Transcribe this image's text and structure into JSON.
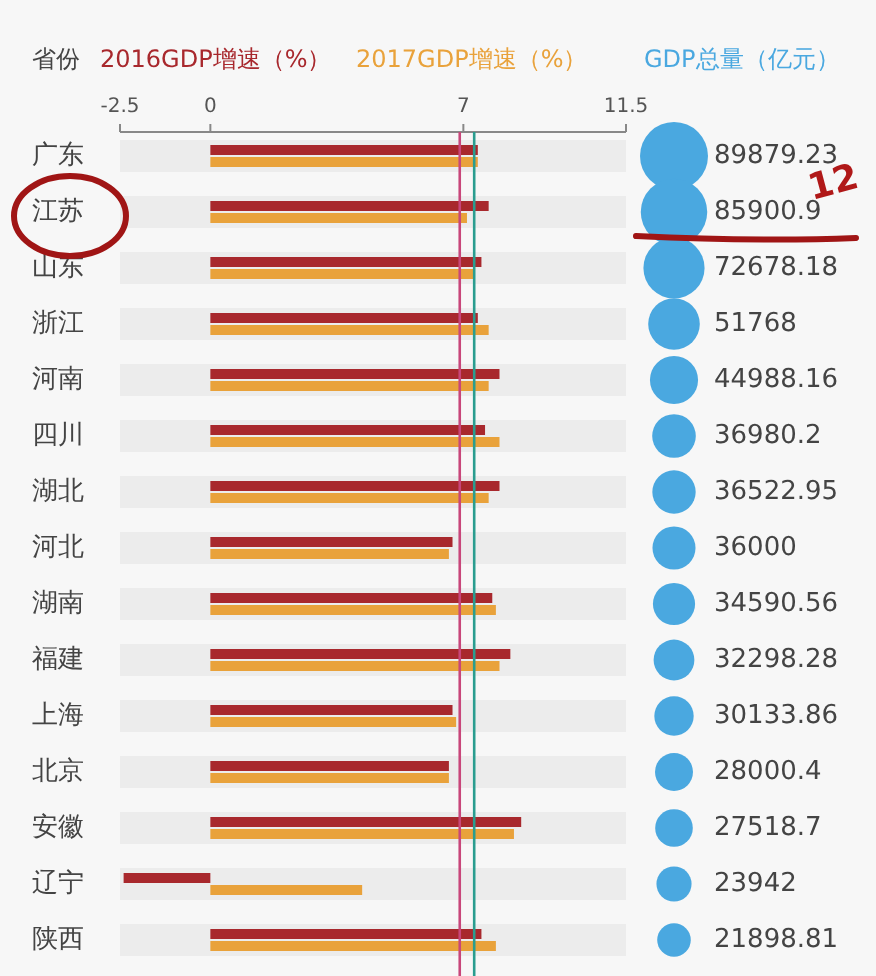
{
  "chart_data": [
    {
      "type": "bar",
      "orientation": "horizontal",
      "ylabel": "省份",
      "categories": [
        "广东",
        "江苏",
        "山东",
        "浙江",
        "河南",
        "四川",
        "湖北",
        "河北",
        "湖南",
        "福建",
        "上海",
        "北京",
        "安徽",
        "辽宁",
        "陕西"
      ],
      "series": [
        {
          "name": "2016GDP增速（%）",
          "color": "#a8282d",
          "values": [
            7.4,
            7.7,
            7.5,
            7.4,
            8.0,
            7.6,
            8.0,
            6.7,
            7.8,
            8.3,
            6.7,
            6.6,
            8.6,
            -2.4,
            7.5
          ]
        },
        {
          "name": "2017GDP增速（%）",
          "color": "#e9a23b",
          "values": [
            7.4,
            7.1,
            7.3,
            7.7,
            7.7,
            8.0,
            7.7,
            6.6,
            7.9,
            8.0,
            6.8,
            6.6,
            8.4,
            4.2,
            7.9
          ]
        }
      ],
      "xlim": [
        -2.5,
        11.5
      ],
      "xticks": [
        -2.5,
        0,
        7,
        11.5
      ],
      "legend": "top",
      "grid": false,
      "bands": [
        {
          "axis": "y",
          "from": "广东",
          "to": "广东",
          "color": "#ececec"
        },
        {
          "axis": "y",
          "from": "江苏",
          "to": "江苏",
          "color": "#ececec"
        },
        {
          "axis": "y",
          "from": "山东",
          "to": "山东",
          "color": "#ececec"
        },
        {
          "axis": "y",
          "from": "浙江",
          "to": "浙江",
          "color": "#ececec"
        },
        {
          "axis": "y",
          "from": "河南",
          "to": "河南",
          "color": "#ececec"
        },
        {
          "axis": "y",
          "from": "四川",
          "to": "四川",
          "color": "#ececec"
        },
        {
          "axis": "y",
          "from": "湖北",
          "to": "湖北",
          "color": "#ececec"
        },
        {
          "axis": "y",
          "from": "河北",
          "to": "河北",
          "color": "#ececec"
        },
        {
          "axis": "y",
          "from": "湖南",
          "to": "湖南",
          "color": "#ececec"
        },
        {
          "axis": "y",
          "from": "福建",
          "to": "福建",
          "color": "#ececec"
        },
        {
          "axis": "y",
          "from": "上海",
          "to": "上海",
          "color": "#ececec"
        },
        {
          "axis": "y",
          "from": "北京",
          "to": "北京",
          "color": "#ececec"
        },
        {
          "axis": "y",
          "from": "安徽",
          "to": "安徽",
          "color": "#ececec"
        },
        {
          "axis": "y",
          "from": "辽宁",
          "to": "辽宁",
          "color": "#ececec"
        },
        {
          "axis": "y",
          "from": "陕西",
          "to": "陕西",
          "color": "#ececec"
        }
      ],
      "ref_lines": [
        {
          "axis": "x",
          "value": 6.9,
          "color": "#c8467a"
        },
        {
          "axis": "x",
          "value": 7.3,
          "color": "#2a9d8f"
        }
      ]
    },
    {
      "type": "other",
      "title": "GDP总量（亿元）",
      "values": [
        89879.23,
        85900.9,
        72678.18,
        51768,
        44988.16,
        36980.2,
        36522.95,
        36000,
        34590.56,
        32298.28,
        30133.86,
        28000.4,
        27518.7,
        23942,
        21898.81
      ],
      "color": "#4aa8e0",
      "data_labels": true,
      "annotations": [
        "12"
      ]
    }
  ]
}
